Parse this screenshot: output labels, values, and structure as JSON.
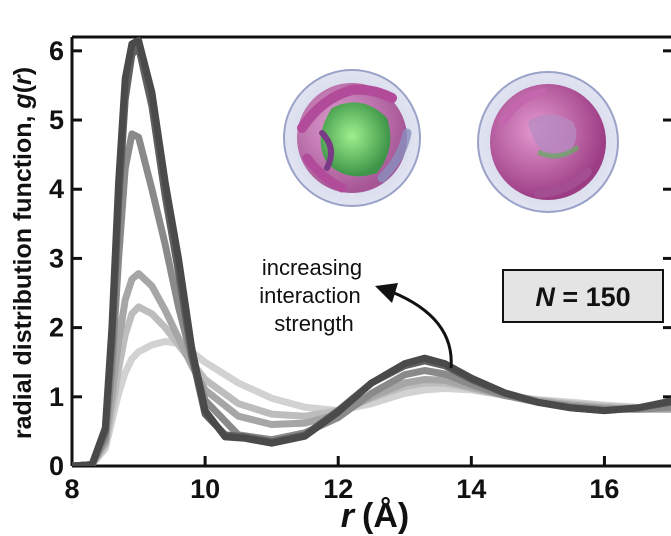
{
  "chart_data": {
    "type": "line",
    "xlabel_var": "r",
    "xlabel_unit": "(Å)",
    "ylabel_prefix": "radial distribution function, ",
    "ylabel_func": "g",
    "ylabel_open": "(",
    "ylabel_var": "r",
    "ylabel_close": ")",
    "xlim": [
      8,
      17
    ],
    "ylim": [
      0,
      6.2
    ],
    "xticks": [
      8,
      10,
      12,
      14,
      16
    ],
    "yticks": [
      0,
      1,
      2,
      3,
      4,
      5,
      6
    ],
    "grid": false,
    "annotation": [
      "increasing",
      "interaction",
      "strength"
    ],
    "label_box": {
      "var": "N",
      "rest": " = 150"
    },
    "series": [
      {
        "color": "#d2d2d2",
        "x": [
          8.0,
          8.3,
          8.5,
          8.6,
          8.7,
          8.8,
          8.9,
          9.0,
          9.2,
          9.4,
          9.6,
          9.8,
          10.0,
          10.5,
          11.0,
          11.5,
          12.0,
          12.5,
          13.0,
          13.3,
          13.6,
          14.0,
          14.5,
          15.0,
          15.5,
          16.0,
          16.5,
          17.0
        ],
        "y": [
          0,
          0.02,
          0.25,
          0.65,
          1.05,
          1.35,
          1.55,
          1.65,
          1.75,
          1.8,
          1.77,
          1.65,
          1.5,
          1.2,
          0.98,
          0.85,
          0.8,
          0.9,
          1.05,
          1.1,
          1.12,
          1.1,
          1.02,
          0.96,
          0.92,
          0.88,
          0.85,
          0.84
        ]
      },
      {
        "color": "#bdbdbd",
        "x": [
          8.0,
          8.3,
          8.5,
          8.6,
          8.7,
          8.8,
          8.9,
          9.0,
          9.2,
          9.4,
          9.6,
          9.8,
          10.0,
          10.5,
          11.0,
          11.5,
          12.0,
          12.5,
          13.0,
          13.3,
          13.6,
          14.0,
          14.5,
          15.0,
          15.5,
          16.0,
          16.5,
          17.0
        ],
        "y": [
          0,
          0.02,
          0.3,
          0.8,
          1.4,
          1.9,
          2.2,
          2.3,
          2.2,
          2.0,
          1.75,
          1.5,
          1.25,
          0.9,
          0.75,
          0.72,
          0.8,
          0.98,
          1.15,
          1.2,
          1.2,
          1.12,
          1.02,
          0.95,
          0.9,
          0.86,
          0.84,
          0.83
        ]
      },
      {
        "color": "#a6a6a6",
        "x": [
          8.0,
          8.3,
          8.5,
          8.6,
          8.7,
          8.8,
          8.9,
          9.0,
          9.2,
          9.4,
          9.6,
          9.8,
          10.0,
          10.5,
          11.0,
          11.5,
          12.0,
          12.5,
          13.0,
          13.3,
          13.6,
          14.0,
          14.5,
          15.0,
          15.5,
          16.0,
          16.5,
          17.0
        ],
        "y": [
          0,
          0.02,
          0.35,
          1.0,
          1.8,
          2.4,
          2.7,
          2.78,
          2.6,
          2.25,
          1.85,
          1.45,
          1.1,
          0.72,
          0.6,
          0.62,
          0.75,
          1.0,
          1.2,
          1.25,
          1.24,
          1.14,
          1.02,
          0.94,
          0.88,
          0.84,
          0.82,
          0.82
        ]
      },
      {
        "color": "#8a8a8a",
        "x": [
          8.0,
          8.3,
          8.5,
          8.6,
          8.7,
          8.8,
          8.9,
          9.0,
          9.2,
          9.4,
          9.6,
          9.8,
          10.0,
          10.5,
          11.0,
          11.5,
          12.0,
          12.5,
          13.0,
          13.3,
          13.6,
          14.0,
          14.5,
          15.0,
          15.5,
          16.0,
          16.5,
          17.0
        ],
        "y": [
          0,
          0.02,
          0.4,
          1.4,
          3.0,
          4.3,
          4.8,
          4.75,
          4.0,
          3.2,
          2.3,
          1.55,
          0.95,
          0.45,
          0.38,
          0.48,
          0.7,
          1.05,
          1.32,
          1.38,
          1.33,
          1.18,
          1.02,
          0.92,
          0.86,
          0.82,
          0.82,
          0.85
        ]
      },
      {
        "color": "#606060",
        "x": [
          8.0,
          8.3,
          8.5,
          8.6,
          8.7,
          8.8,
          8.9,
          9.0,
          9.2,
          9.4,
          9.6,
          9.8,
          10.0,
          10.3,
          10.6,
          11.0,
          11.5,
          12.0,
          12.5,
          13.0,
          13.3,
          13.6,
          14.0,
          14.5,
          15.0,
          15.5,
          16.0,
          16.5,
          17.0
        ],
        "y": [
          0,
          0.02,
          0.5,
          1.8,
          3.8,
          5.3,
          5.95,
          6.05,
          5.2,
          3.9,
          2.8,
          1.6,
          0.75,
          0.45,
          0.42,
          0.35,
          0.45,
          0.8,
          1.2,
          1.45,
          1.52,
          1.45,
          1.25,
          1.05,
          0.92,
          0.84,
          0.8,
          0.84,
          0.92
        ]
      },
      {
        "color": "#4a4a4a",
        "x": [
          8.0,
          8.3,
          8.5,
          8.6,
          8.7,
          8.8,
          8.9,
          9.0,
          9.2,
          9.4,
          9.6,
          9.8,
          10.0,
          10.3,
          10.6,
          11.0,
          11.5,
          12.0,
          12.5,
          13.0,
          13.3,
          13.6,
          14.0,
          14.5,
          15.0,
          15.5,
          16.0,
          16.5,
          17.0
        ],
        "y": [
          0,
          0.02,
          0.55,
          2.0,
          4.1,
          5.6,
          6.1,
          6.15,
          5.4,
          4.1,
          3.0,
          1.7,
          0.8,
          0.42,
          0.4,
          0.33,
          0.43,
          0.78,
          1.2,
          1.48,
          1.56,
          1.48,
          1.27,
          1.06,
          0.92,
          0.84,
          0.8,
          0.84,
          0.94
        ]
      }
    ]
  },
  "insets": [
    {
      "name": "protein-cluster-cutaway"
    },
    {
      "name": "protein-cluster-surface"
    }
  ]
}
